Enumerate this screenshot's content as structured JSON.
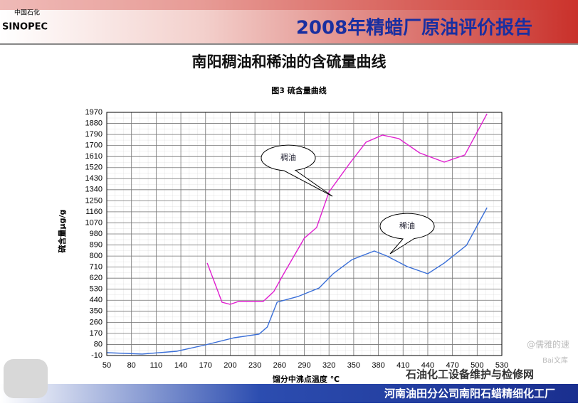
{
  "header_title": "2008年精蜡厂原油评价报告",
  "logo_text": "SINOPEC",
  "logo_cn": "中国石化",
  "slide_title": "南阳稠油和稀油的含硫量曲线",
  "footer": "河南油田分公司南阳石蜡精细化工厂",
  "watermarks": [
    "石油化工设备维护与检修网",
    "@儒雅的速",
    "Bai文库"
  ],
  "chart_data": {
    "type": "line",
    "title": "图3   硫含量曲线",
    "x_label": "馏分中沸点温度 ℃",
    "y_label": "硫含量μg/g",
    "xlim": [
      50,
      530
    ],
    "xticks": [
      50,
      80,
      110,
      140,
      170,
      200,
      230,
      260,
      290,
      320,
      350,
      380,
      410,
      440,
      470,
      500,
      530
    ],
    "ylim": [
      -10,
      1970
    ],
    "yticks": [
      -10,
      80,
      170,
      260,
      350,
      440,
      530,
      620,
      710,
      800,
      890,
      980,
      1070,
      1160,
      1250,
      1340,
      1430,
      1520,
      1610,
      1700,
      1790,
      1880,
      1970
    ],
    "grid": true,
    "series": [
      {
        "name": "稠油",
        "color": "#e020d0",
        "x": [
          172,
          190,
          200,
          210,
          240,
          253,
          265,
          290,
          305,
          320,
          345,
          365,
          385,
          405,
          430,
          460,
          485,
          512
        ],
        "values": [
          743,
          424,
          407,
          430,
          430,
          511,
          656,
          945,
          1032,
          1322,
          1553,
          1727,
          1785,
          1756,
          1640,
          1565,
          1623,
          1959
        ]
      },
      {
        "name": "稀油",
        "color": "#3a6fd8",
        "x": [
          50,
          93,
          135,
          170,
          205,
          235,
          245,
          257,
          282,
          308,
          325,
          348,
          375,
          390,
          415,
          440,
          460,
          487,
          512
        ],
        "values": [
          13,
          2,
          25,
          77,
          135,
          164,
          222,
          424,
          470,
          540,
          656,
          771,
          841,
          801,
          714,
          656,
          743,
          887,
          1194
        ]
      }
    ]
  }
}
